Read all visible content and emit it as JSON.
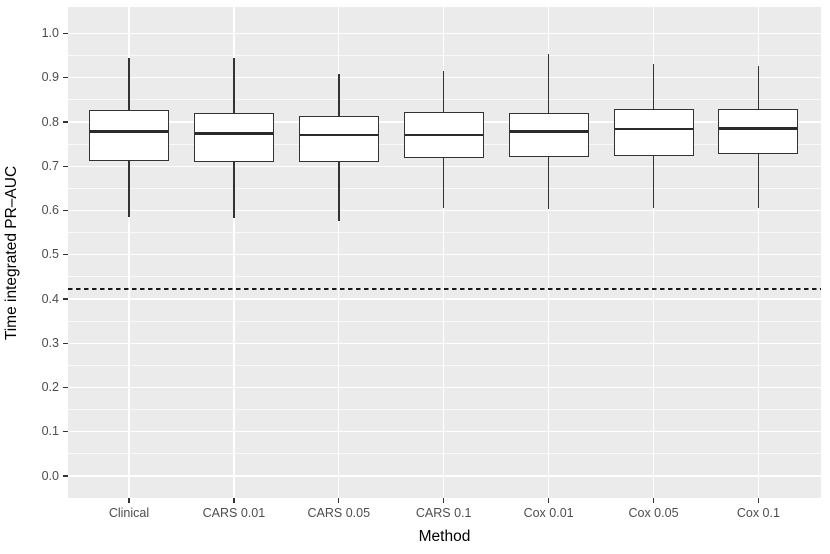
{
  "chart_data": {
    "type": "boxplot",
    "title": "",
    "xlabel": "Method",
    "ylabel": "Time integrated PR–AUC",
    "categories": [
      "Clinical",
      "CARS 0.01",
      "CARS 0.05",
      "CARS 0.1",
      "Cox 0.01",
      "Cox 0.05",
      "Cox 0.1"
    ],
    "boxes": [
      {
        "category": "Clinical",
        "whisker_low": 0.585,
        "q1": 0.712,
        "median": 0.777,
        "q3": 0.827,
        "whisker_high": 0.945
      },
      {
        "category": "CARS 0.01",
        "whisker_low": 0.583,
        "q1": 0.709,
        "median": 0.772,
        "q3": 0.821,
        "whisker_high": 0.945
      },
      {
        "category": "CARS 0.05",
        "whisker_low": 0.576,
        "q1": 0.71,
        "median": 0.769,
        "q3": 0.814,
        "whisker_high": 0.908
      },
      {
        "category": "CARS 0.1",
        "whisker_low": 0.605,
        "q1": 0.719,
        "median": 0.769,
        "q3": 0.823,
        "whisker_high": 0.916
      },
      {
        "category": "Cox 0.01",
        "whisker_low": 0.604,
        "q1": 0.72,
        "median": 0.777,
        "q3": 0.821,
        "whisker_high": 0.953
      },
      {
        "category": "Cox 0.05",
        "whisker_low": 0.605,
        "q1": 0.724,
        "median": 0.783,
        "q3": 0.829,
        "whisker_high": 0.93
      },
      {
        "category": "Cox 0.1",
        "whisker_low": 0.605,
        "q1": 0.727,
        "median": 0.784,
        "q3": 0.83,
        "whisker_high": 0.926
      }
    ],
    "reference_line": {
      "y": 0.422,
      "style": "dashed",
      "color": "#1A1A1A"
    },
    "y_ticks": [
      "0.0",
      "0.1",
      "0.2",
      "0.3",
      "0.4",
      "0.5",
      "0.6",
      "0.7",
      "0.8",
      "0.9",
      "1.0"
    ],
    "ylim": [
      0.0,
      1.0
    ],
    "grid": {
      "horizontal": "major+minor",
      "vertical": "category-centers",
      "color": "#FFFFFF"
    },
    "legend": "none",
    "colors": {
      "panel_background": "#EBEBEB",
      "gridline": "#FFFFFF",
      "box_outline": "#333333",
      "box_fill": "#FFFFFF",
      "median": "#2B2B2B",
      "axis_text": "#4D4D4D",
      "axis_title": "#000000"
    }
  }
}
